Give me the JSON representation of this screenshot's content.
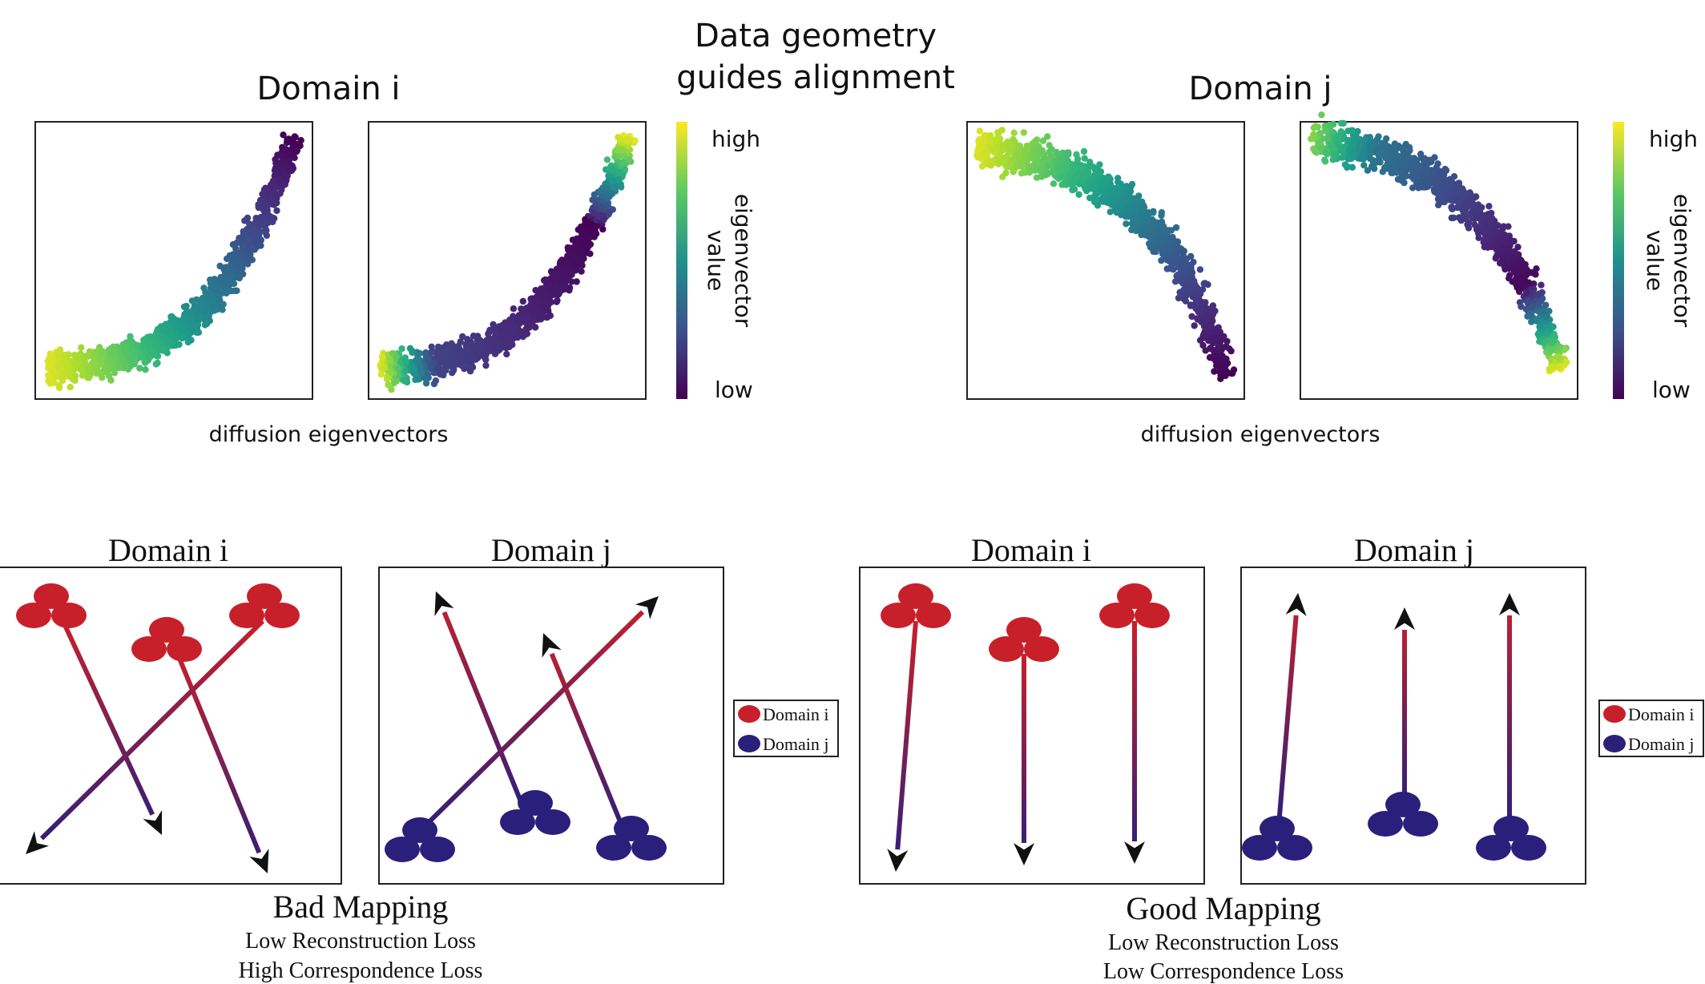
{
  "title_lines": [
    "Data geometry",
    "guides alignment"
  ],
  "top": {
    "domain_i_title": "Domain i",
    "domain_j_title": "Domain j",
    "caption": "diffusion eigenvectors",
    "colorbar": {
      "high": "high",
      "low": "low",
      "label_line1": "eigenvector",
      "label_line2": "value"
    }
  },
  "bottom": {
    "bad": {
      "domain_i_title": "Domain i",
      "domain_j_title": "Domain j",
      "title": "Bad Mapping",
      "line1": "Low Reconstruction Loss",
      "line2": "High Correspondence Loss"
    },
    "good": {
      "domain_i_title": "Domain i",
      "domain_j_title": "Domain j",
      "title": "Good Mapping",
      "line1": "Low Reconstruction Loss",
      "line2": "Low Correspondence Loss"
    },
    "legend": {
      "domain_i": "Domain i",
      "domain_j": "Domain j"
    }
  },
  "colors": {
    "domain_i": "#c8202a",
    "domain_j": "#2b1f7c",
    "arrow_head": "#111111"
  }
}
